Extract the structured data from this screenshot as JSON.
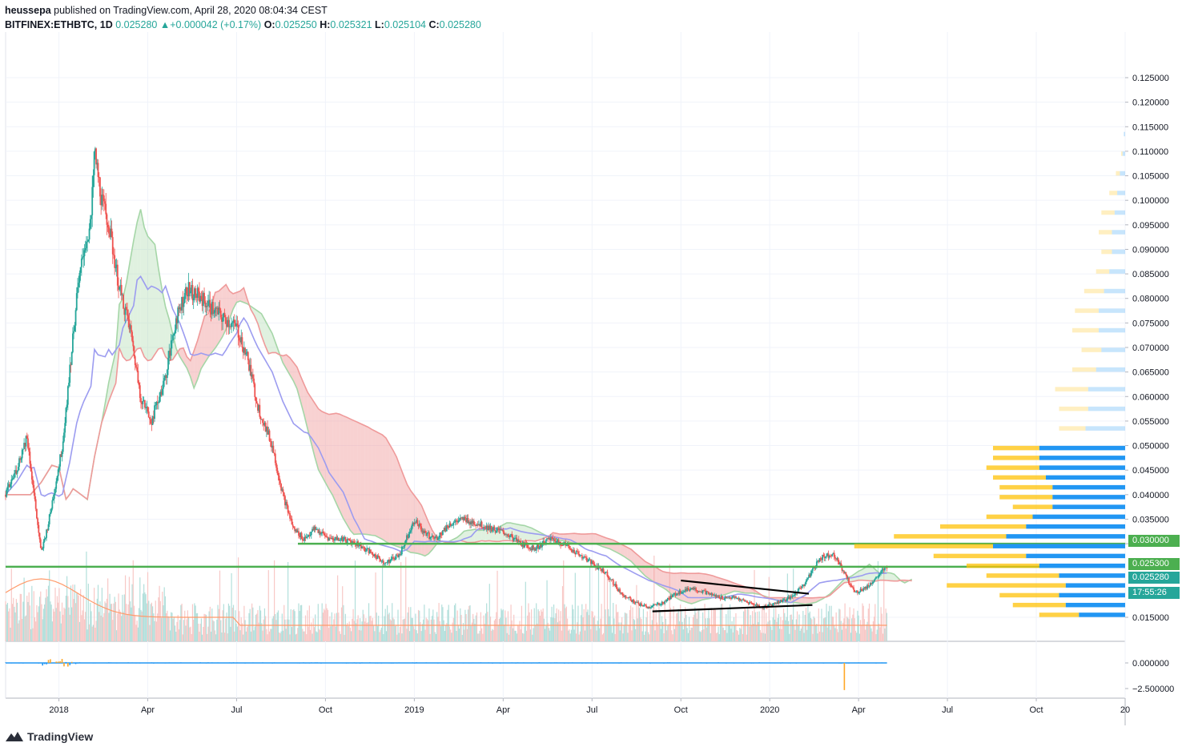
{
  "header": {
    "publisher": "heussepa",
    "published_text": "published on TradingView.com, April 28, 2020 08:04:34 CEST",
    "symbol": "BITFINEX:ETHBTC, 1D",
    "last": "0.025280",
    "change_icon": "triangle-up-icon",
    "change": "+0.000042 (+0.17%)",
    "o_label": "O:",
    "o": "0.025250",
    "h_label": "H:",
    "h": "0.025321",
    "l_label": "L:",
    "l": "0.025104",
    "c_label": "C:",
    "c": "0.025280"
  },
  "price_badges": {
    "level_high": "0.030000",
    "level_low": "0.025300",
    "last_price": "0.025280",
    "countdown": "17:55:26"
  },
  "footer": {
    "logo_icon": "tradingview-logo-icon",
    "brand": "TradingView"
  },
  "colors": {
    "up": "#26a69a",
    "down": "#ef5350",
    "level": "#4caf50",
    "kijun": "#9c9cf0",
    "cloud_bull": "#a5d6a7",
    "cloud_bear": "#ef9a9a",
    "vp_up": "#2196f3",
    "vp_down": "#ffc107",
    "volume_ma": "#ff9b6b"
  },
  "chart_data": {
    "type": "candlestick",
    "symbol": "BITFINEX:ETHBTC",
    "interval": "1D",
    "price_axis": {
      "range": [
        0.01,
        0.128
      ],
      "ticks": [
        "0.125000",
        "0.120000",
        "0.115000",
        "0.110000",
        "0.105000",
        "0.100000",
        "0.095000",
        "0.090000",
        "0.085000",
        "0.080000",
        "0.075000",
        "0.070000",
        "0.065000",
        "0.060000",
        "0.055000",
        "0.050000",
        "0.045000",
        "0.040000",
        "0.035000",
        "0.030000",
        "0.025300",
        "0.025280",
        "0.015000"
      ],
      "tick_values": [
        0.125,
        0.12,
        0.115,
        0.11,
        0.105,
        0.1,
        0.095,
        0.09,
        0.085,
        0.08,
        0.075,
        0.07,
        0.065,
        0.06,
        0.055,
        0.05,
        0.045,
        0.04,
        0.035,
        0.03,
        0.0253,
        0.02528,
        0.015
      ]
    },
    "time_axis": {
      "labels": [
        "2018",
        "Apr",
        "Jul",
        "Oct",
        "2019",
        "Apr",
        "Jul",
        "Oct",
        "2020",
        "Apr",
        "Jul",
        "Oct",
        "20"
      ],
      "label_months": [
        2018.0,
        2018.25,
        2018.5,
        2018.75,
        2019.0,
        2019.25,
        2019.5,
        2019.75,
        2020.0,
        2020.25,
        2020.5,
        2020.75,
        2021.0
      ],
      "range": [
        2017.85,
        2021.0
      ]
    },
    "oscillator_axis": {
      "ticks": [
        "0.000000",
        "−2.500000"
      ],
      "tick_values": [
        0,
        -2.5
      ]
    },
    "price_series": [
      [
        2017.85,
        0.04
      ],
      [
        2017.88,
        0.045
      ],
      [
        2017.91,
        0.052
      ],
      [
        2017.93,
        0.04
      ],
      [
        2017.95,
        0.028
      ],
      [
        2017.97,
        0.034
      ],
      [
        2017.99,
        0.042
      ],
      [
        2018.01,
        0.05
      ],
      [
        2018.03,
        0.065
      ],
      [
        2018.05,
        0.08
      ],
      [
        2018.07,
        0.09
      ],
      [
        2018.09,
        0.095
      ],
      [
        2018.1,
        0.11
      ],
      [
        2018.12,
        0.1
      ],
      [
        2018.14,
        0.095
      ],
      [
        2018.17,
        0.082
      ],
      [
        2018.2,
        0.074
      ],
      [
        2018.23,
        0.06
      ],
      [
        2018.26,
        0.055
      ],
      [
        2018.3,
        0.064
      ],
      [
        2018.33,
        0.076
      ],
      [
        2018.36,
        0.082
      ],
      [
        2018.4,
        0.08
      ],
      [
        2018.43,
        0.078
      ],
      [
        2018.46,
        0.076
      ],
      [
        2018.5,
        0.074
      ],
      [
        2018.53,
        0.068
      ],
      [
        2018.56,
        0.058
      ],
      [
        2018.6,
        0.05
      ],
      [
        2018.63,
        0.04
      ],
      [
        2018.66,
        0.033
      ],
      [
        2018.69,
        0.031
      ],
      [
        2018.72,
        0.033
      ],
      [
        2018.76,
        0.031
      ],
      [
        2018.8,
        0.031
      ],
      [
        2018.84,
        0.03
      ],
      [
        2018.88,
        0.028
      ],
      [
        2018.92,
        0.026
      ],
      [
        2018.96,
        0.028
      ],
      [
        2019.0,
        0.035
      ],
      [
        2019.03,
        0.032
      ],
      [
        2019.06,
        0.031
      ],
      [
        2019.1,
        0.034
      ],
      [
        2019.14,
        0.035
      ],
      [
        2019.18,
        0.034
      ],
      [
        2019.22,
        0.033
      ],
      [
        2019.26,
        0.032
      ],
      [
        2019.3,
        0.03
      ],
      [
        2019.34,
        0.029
      ],
      [
        2019.38,
        0.031
      ],
      [
        2019.42,
        0.03
      ],
      [
        2019.46,
        0.028
      ],
      [
        2019.5,
        0.026
      ],
      [
        2019.54,
        0.024
      ],
      [
        2019.58,
        0.02
      ],
      [
        2019.62,
        0.018
      ],
      [
        2019.66,
        0.017
      ],
      [
        2019.7,
        0.018
      ],
      [
        2019.74,
        0.02
      ],
      [
        2019.78,
        0.021
      ],
      [
        2019.82,
        0.02
      ],
      [
        2019.86,
        0.019
      ],
      [
        2019.9,
        0.019
      ],
      [
        2019.94,
        0.018
      ],
      [
        2019.98,
        0.017
      ],
      [
        2020.02,
        0.018
      ],
      [
        2020.06,
        0.019
      ],
      [
        2020.1,
        0.022
      ],
      [
        2020.14,
        0.027
      ],
      [
        2020.18,
        0.028
      ],
      [
        2020.21,
        0.024
      ],
      [
        2020.24,
        0.02
      ],
      [
        2020.27,
        0.021
      ],
      [
        2020.3,
        0.023
      ],
      [
        2020.33,
        0.0253
      ]
    ],
    "horizontal_levels": [
      0.03,
      0.0253
    ],
    "annotations": {
      "triangle_upper": [
        [
          2019.75,
          0.0225
        ],
        [
          2020.11,
          0.0198
        ]
      ],
      "triangle_lower": [
        [
          2019.67,
          0.0162
        ],
        [
          2020.12,
          0.0175
        ]
      ]
    },
    "volume_profile": [
      {
        "price": 0.0155,
        "up": 0.35,
        "down": 0.3
      },
      {
        "price": 0.0175,
        "up": 0.45,
        "down": 0.4
      },
      {
        "price": 0.0195,
        "up": 0.5,
        "down": 0.45
      },
      {
        "price": 0.0215,
        "up": 0.45,
        "down": 0.9
      },
      {
        "price": 0.0235,
        "up": 0.5,
        "down": 0.55
      },
      {
        "price": 0.0255,
        "up": 0.65,
        "down": 0.55
      },
      {
        "price": 0.0275,
        "up": 0.75,
        "down": 0.7
      },
      {
        "price": 0.0295,
        "up": 1.0,
        "down": 1.05
      },
      {
        "price": 0.0315,
        "up": 0.9,
        "down": 0.85
      },
      {
        "price": 0.0335,
        "up": 0.75,
        "down": 0.65
      },
      {
        "price": 0.0355,
        "up": 0.7,
        "down": 0.35
      },
      {
        "price": 0.0375,
        "up": 0.55,
        "down": 0.3
      },
      {
        "price": 0.0395,
        "up": 0.55,
        "down": 0.4
      },
      {
        "price": 0.0415,
        "up": 0.55,
        "down": 0.4
      },
      {
        "price": 0.0435,
        "up": 0.6,
        "down": 0.4
      },
      {
        "price": 0.0455,
        "up": 0.65,
        "down": 0.4
      },
      {
        "price": 0.0475,
        "up": 0.65,
        "down": 0.35
      },
      {
        "price": 0.0495,
        "up": 0.65,
        "down": 0.35
      },
      {
        "price": 0.0535,
        "up": 0.3,
        "down": 0.2
      },
      {
        "price": 0.0575,
        "up": 0.28,
        "down": 0.22
      },
      {
        "price": 0.0615,
        "up": 0.28,
        "down": 0.25
      },
      {
        "price": 0.0655,
        "up": 0.22,
        "down": 0.18
      },
      {
        "price": 0.0695,
        "up": 0.18,
        "down": 0.15
      },
      {
        "price": 0.0735,
        "up": 0.2,
        "down": 0.2
      },
      {
        "price": 0.0775,
        "up": 0.2,
        "down": 0.18
      },
      {
        "price": 0.0815,
        "up": 0.16,
        "down": 0.15
      },
      {
        "price": 0.0855,
        "up": 0.12,
        "down": 0.1
      },
      {
        "price": 0.0895,
        "up": 0.1,
        "down": 0.08
      },
      {
        "price": 0.0935,
        "up": 0.1,
        "down": 0.1
      },
      {
        "price": 0.0975,
        "up": 0.08,
        "down": 0.1
      },
      {
        "price": 0.1015,
        "up": 0.06,
        "down": 0.06
      },
      {
        "price": 0.1055,
        "up": 0.04,
        "down": 0.03
      },
      {
        "price": 0.1095,
        "up": 0.02,
        "down": 0.01
      },
      {
        "price": 0.1135,
        "up": 0.01,
        "down": 0.0
      }
    ]
  }
}
